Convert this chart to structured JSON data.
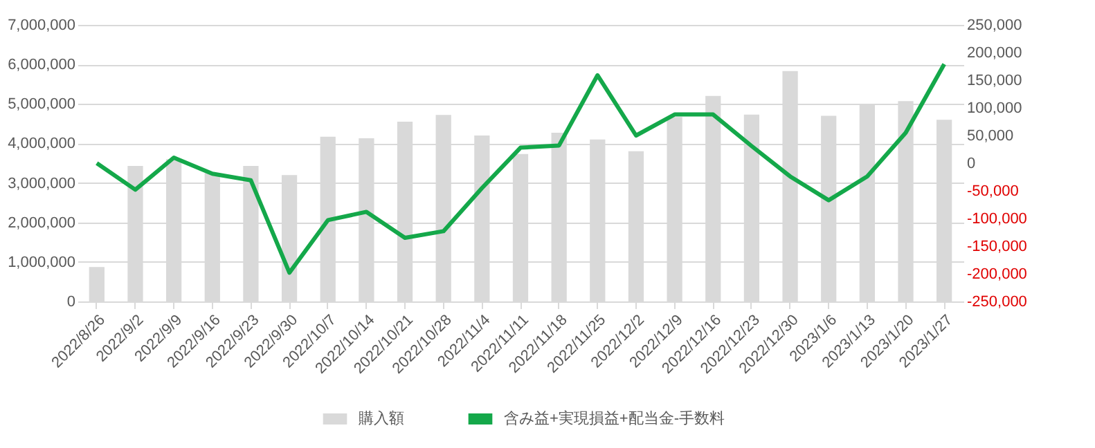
{
  "chart_data": {
    "type": "bar",
    "categories": [
      "2022/8/26",
      "2022/9/2",
      "2022/9/9",
      "2022/9/16",
      "2022/9/23",
      "2022/9/30",
      "2022/10/7",
      "2022/10/14",
      "2022/10/21",
      "2022/10/28",
      "2022/11/4",
      "2022/11/11",
      "2022/11/18",
      "2022/11/25",
      "2022/12/2",
      "2022/12/9",
      "2022/12/16",
      "2022/12/23",
      "2022/12/30",
      "2023/1/6",
      "2023/1/13",
      "2023/1/20",
      "2023/1/27"
    ],
    "series": [
      {
        "name": "購入額",
        "color": "#d9d9d9",
        "values": [
          870000,
          3430000,
          3600000,
          3250000,
          3430000,
          3200000,
          4170000,
          4130000,
          4550000,
          4720000,
          4200000,
          3730000,
          4270000,
          4100000,
          3800000,
          4670000,
          5200000,
          4730000,
          5830000,
          4700000,
          4970000,
          5070000,
          4600000
        ]
      },
      {
        "name": "含み益+実現損益+配当金-手数料",
        "type": "line",
        "axis": "y2",
        "color": "#14a84a",
        "values": [
          0,
          -48000,
          10000,
          -19000,
          -31000,
          -198000,
          -103000,
          -88000,
          -135000,
          -123000,
          -45000,
          28000,
          32000,
          159000,
          50000,
          88000,
          88000,
          31000,
          -24000,
          -67000,
          -24000,
          55000,
          179000
        ]
      }
    ],
    "ylim": [
      0,
      7000000
    ],
    "yticks": [
      0,
      {
        "value": 1000000,
        "label": "1,000,000"
      },
      {
        "value": 2000000,
        "label": "2,000,000"
      },
      {
        "value": 3000000,
        "label": "3,000,000"
      },
      {
        "value": 4000000,
        "label": "4,000,000"
      },
      {
        "value": 5000000,
        "label": "5,000,000"
      },
      {
        "value": 6000000,
        "label": "6,000,000"
      },
      {
        "value": 7000000,
        "label": "7,000,000"
      }
    ],
    "y2lim": [
      -250000,
      250000
    ],
    "y2ticks": [
      {
        "value": -250000,
        "label": "-250,000"
      },
      {
        "value": -200000,
        "label": "-200,000"
      },
      {
        "value": -150000,
        "label": "-150,000"
      },
      {
        "value": -100000,
        "label": "-100,000"
      },
      {
        "value": -50000,
        "label": "-50,000"
      },
      0,
      {
        "value": 50000,
        "label": "50,000"
      },
      {
        "value": 100000,
        "label": "100,000"
      },
      {
        "value": 150000,
        "label": "150,000"
      },
      {
        "value": 200000,
        "label": "200,000"
      },
      {
        "value": 250000,
        "label": "250,000"
      }
    ],
    "grid": "y",
    "legend": "bottom",
    "marker": "none",
    "line_style": "solid"
  }
}
